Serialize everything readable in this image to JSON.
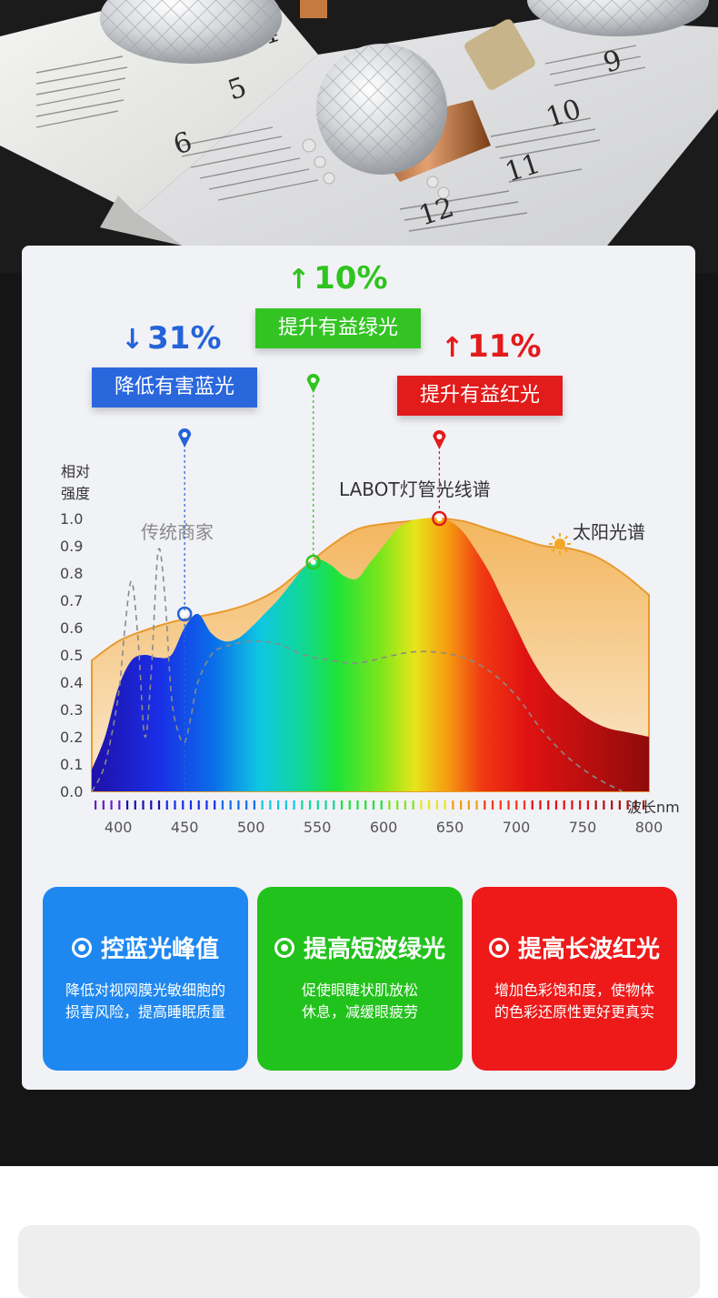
{
  "colors": {
    "blue": "#2563d8",
    "green": "#2fc41f",
    "red": "#e21b1b",
    "sun_fill": "#f5c27a",
    "feature_blue": "#1f88f0",
    "feature_green": "#22c21c",
    "feature_red": "#ee1a1a"
  },
  "annotations": {
    "blue": {
      "arrow": "↓",
      "pct": "31%",
      "label": "降低有害蓝光"
    },
    "green": {
      "arrow": "↑",
      "pct": "10%",
      "label": "提升有益绿光"
    },
    "red": {
      "arrow": "↑",
      "pct": "11%",
      "label": "提升有益红光"
    }
  },
  "chart_data": {
    "type": "area",
    "ylabel_line1": "相对",
    "ylabel_line2": "强度",
    "xlabel": "波长nm",
    "ylim": [
      0,
      1.0
    ],
    "xlim": [
      380,
      800
    ],
    "yticks": [
      "1.0",
      "0.9",
      "0.8",
      "0.7",
      "0.6",
      "0.5",
      "0.4",
      "0.3",
      "0.2",
      "0.1",
      "0.0"
    ],
    "xticks": [
      "400",
      "450",
      "500",
      "550",
      "600",
      "650",
      "700",
      "750",
      "800"
    ],
    "series": [
      {
        "name": "太阳光谱",
        "style": "filled-orange",
        "x": [
          380,
          400,
          420,
          440,
          460,
          480,
          500,
          520,
          540,
          560,
          580,
          600,
          620,
          640,
          660,
          680,
          700,
          720,
          740,
          760,
          780,
          800
        ],
        "y": [
          0.48,
          0.55,
          0.59,
          0.62,
          0.64,
          0.66,
          0.69,
          0.74,
          0.82,
          0.9,
          0.96,
          0.98,
          0.99,
          1.0,
          0.99,
          0.96,
          0.93,
          0.9,
          0.89,
          0.86,
          0.8,
          0.72
        ]
      },
      {
        "name": "LABOT灯管光线谱",
        "style": "rainbow",
        "x": [
          380,
          390,
          400,
          410,
          420,
          430,
          440,
          450,
          460,
          470,
          480,
          490,
          500,
          510,
          520,
          530,
          540,
          550,
          560,
          570,
          580,
          590,
          600,
          610,
          620,
          630,
          640,
          650,
          660,
          670,
          680,
          690,
          700,
          710,
          720,
          730,
          740,
          750,
          760,
          770,
          780,
          790,
          800
        ],
        "y": [
          0.08,
          0.2,
          0.38,
          0.48,
          0.5,
          0.49,
          0.5,
          0.6,
          0.65,
          0.58,
          0.55,
          0.56,
          0.6,
          0.65,
          0.7,
          0.76,
          0.82,
          0.85,
          0.83,
          0.79,
          0.78,
          0.84,
          0.9,
          0.96,
          0.99,
          1.0,
          1.0,
          0.99,
          0.95,
          0.88,
          0.8,
          0.7,
          0.6,
          0.5,
          0.42,
          0.36,
          0.32,
          0.28,
          0.25,
          0.23,
          0.22,
          0.21,
          0.2
        ]
      },
      {
        "name": "传统商家",
        "style": "dashed",
        "x": [
          380,
          390,
          400,
          405,
          410,
          415,
          420,
          425,
          430,
          435,
          440,
          445,
          450,
          455,
          460,
          470,
          480,
          500,
          520,
          540,
          560,
          580,
          600,
          620,
          640,
          660,
          680,
          700,
          720,
          740,
          760,
          780
        ],
        "y": [
          0.0,
          0.1,
          0.35,
          0.6,
          0.77,
          0.55,
          0.2,
          0.45,
          0.88,
          0.72,
          0.35,
          0.22,
          0.18,
          0.28,
          0.4,
          0.5,
          0.53,
          0.55,
          0.54,
          0.5,
          0.48,
          0.47,
          0.49,
          0.51,
          0.51,
          0.49,
          0.44,
          0.35,
          0.22,
          0.12,
          0.05,
          0.0
        ]
      }
    ],
    "markers": [
      {
        "x": 450,
        "y": 0.65,
        "color": "blue"
      },
      {
        "x": 547,
        "y": 0.84,
        "color": "green"
      },
      {
        "x": 642,
        "y": 1.0,
        "color": "red"
      }
    ]
  },
  "features": [
    {
      "title": "控蓝光峰值",
      "desc1": "降低对视网膜光敏细胞的",
      "desc2": "损害风险，提高睡眠质量"
    },
    {
      "title": "提高短波绿光",
      "desc1": "促使眼睫状肌放松",
      "desc2": "休息，减缓眼疲劳"
    },
    {
      "title": "提高长波红光",
      "desc1": "增加色彩饱和度，使物体",
      "desc2": "的色彩还原性更好更真实"
    }
  ]
}
